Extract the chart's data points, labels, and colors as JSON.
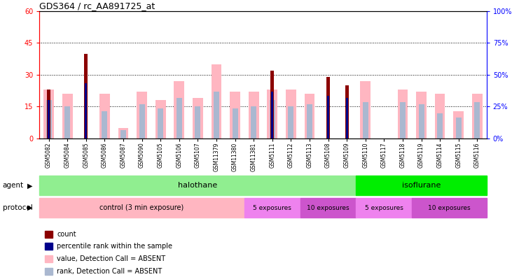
{
  "title": "GDS364 / rc_AA891725_at",
  "samples": [
    "GSM5082",
    "GSM5084",
    "GSM5085",
    "GSM5086",
    "GSM5087",
    "GSM5090",
    "GSM5105",
    "GSM5106",
    "GSM5107",
    "GSM11379",
    "GSM11380",
    "GSM11381",
    "GSM5111",
    "GSM5112",
    "GSM5113",
    "GSM5108",
    "GSM5109",
    "GSM5110",
    "GSM5117",
    "GSM5118",
    "GSM5119",
    "GSM5114",
    "GSM5115",
    "GSM5116"
  ],
  "count_values": [
    23,
    0,
    40,
    0,
    0,
    0,
    0,
    0,
    0,
    0,
    0,
    0,
    32,
    0,
    0,
    29,
    25,
    0,
    0,
    0,
    0,
    0,
    0,
    0
  ],
  "rank_values": [
    18,
    0,
    26,
    0,
    0,
    0,
    0,
    0,
    0,
    0,
    0,
    0,
    22,
    0,
    0,
    20,
    19,
    0,
    0,
    0,
    0,
    0,
    0,
    0
  ],
  "value_absent": [
    23,
    21,
    0,
    21,
    5,
    22,
    18,
    27,
    19,
    35,
    22,
    22,
    23,
    23,
    21,
    0,
    0,
    27,
    0,
    23,
    22,
    21,
    13,
    21
  ],
  "rank_absent": [
    18,
    15,
    0,
    13,
    4,
    16,
    14,
    19,
    15,
    22,
    14,
    15,
    18,
    15,
    16,
    0,
    0,
    17,
    0,
    17,
    16,
    12,
    10,
    17
  ],
  "value_absent_color": "#ffb6c1",
  "rank_absent_color": "#aab8d0",
  "count_color": "#8b0000",
  "rank_color": "#00008b",
  "ylim_left": [
    0,
    60
  ],
  "ylim_right": [
    0,
    100
  ],
  "yticks_left": [
    0,
    15,
    30,
    45,
    60
  ],
  "yticks_right": [
    0,
    25,
    50,
    75,
    100
  ],
  "ytick_labels_left": [
    "0",
    "15",
    "30",
    "45",
    "60"
  ],
  "ytick_labels_right": [
    "0%",
    "25%",
    "50%",
    "75%",
    "100%"
  ],
  "agent_halothane_range": [
    0,
    17
  ],
  "agent_isoflurane_range": [
    17,
    24
  ],
  "protocol_control_range": [
    0,
    11
  ],
  "protocol_5exp_halo_range": [
    11,
    14
  ],
  "protocol_10exp_halo_range": [
    14,
    17
  ],
  "protocol_5exp_iso_range": [
    17,
    20
  ],
  "protocol_10exp_iso_range": [
    20,
    24
  ],
  "agent_halothane_color": "#90ee90",
  "agent_isoflurane_color": "#00ee00",
  "protocol_control_color": "#ffb6c1",
  "protocol_5exp_color": "#ee82ee",
  "protocol_10exp_color": "#cc55cc",
  "legend_items": [
    {
      "label": "count",
      "color": "#8b0000"
    },
    {
      "label": "percentile rank within the sample",
      "color": "#00008b"
    },
    {
      "label": "value, Detection Call = ABSENT",
      "color": "#ffb6c1"
    },
    {
      "label": "rank, Detection Call = ABSENT",
      "color": "#aab8d0"
    }
  ]
}
